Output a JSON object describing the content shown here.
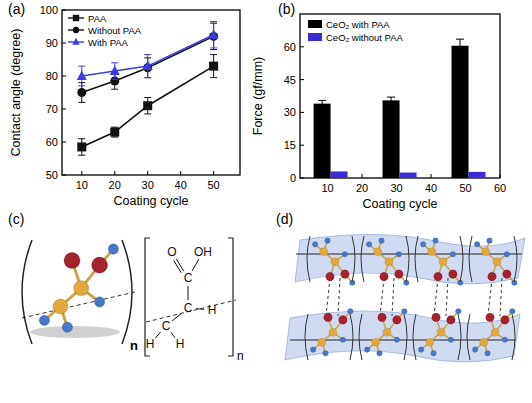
{
  "chart_data": [
    {
      "type": "line",
      "title": "(a)",
      "x_label": "Coating cycle",
      "y_label": "Contact angle (degree)",
      "x": [
        10,
        20,
        30,
        50
      ],
      "xlim": [
        4,
        58
      ],
      "xticks": [
        10,
        20,
        30,
        40,
        50
      ],
      "ylim": [
        50,
        100
      ],
      "yticks": [
        50,
        60,
        70,
        80,
        90,
        100
      ],
      "grid": false,
      "legend": "upper left",
      "series": [
        {
          "name": "PAA",
          "color": "#111111",
          "marker": "square",
          "values": [
            58.5,
            63,
            71,
            83
          ],
          "errors": [
            2.5,
            1.5,
            2.5,
            3.5
          ]
        },
        {
          "name": "Without PAA",
          "color": "#111111",
          "marker": "circle",
          "values": [
            75,
            78.5,
            82.5,
            92
          ],
          "errors": [
            3,
            2.5,
            3,
            4
          ]
        },
        {
          "name": "With PAA",
          "color": "#3b3be0",
          "marker": "triangle",
          "values": [
            80,
            81.5,
            83,
            92.5
          ],
          "errors": [
            3,
            2.5,
            3.5,
            4
          ]
        }
      ]
    },
    {
      "type": "bar",
      "title": "(b)",
      "x_label": "Coating cycle",
      "y_label": "Force (gf/mm)",
      "x": [
        10,
        30,
        50
      ],
      "xlim": [
        2,
        60
      ],
      "xticks": [
        10,
        20,
        30,
        40,
        50,
        60
      ],
      "ylim": [
        0,
        75
      ],
      "yticks": [
        0,
        15,
        30,
        45,
        60
      ],
      "grid": false,
      "legend": "upper left",
      "series": [
        {
          "name": "CeO₂ with PAA",
          "color": "#000000",
          "values": [
            34,
            35.5,
            60.5
          ],
          "errors": [
            1.5,
            1.5,
            3
          ]
        },
        {
          "name": "CeO₂ without PAA",
          "color": "#3a2bd9",
          "values": [
            3,
            2.5,
            2.8
          ],
          "errors": [
            0,
            0,
            0
          ]
        }
      ]
    }
  ],
  "panel_c": {
    "label": "(c)",
    "ball_model": {
      "repeat": "n"
    },
    "formula": {
      "atoms": [
        "O",
        "OH",
        "C",
        "C",
        "H",
        "C",
        "H",
        "H"
      ],
      "repeat": "n"
    }
  },
  "panel_d": {
    "label": "(d)"
  }
}
